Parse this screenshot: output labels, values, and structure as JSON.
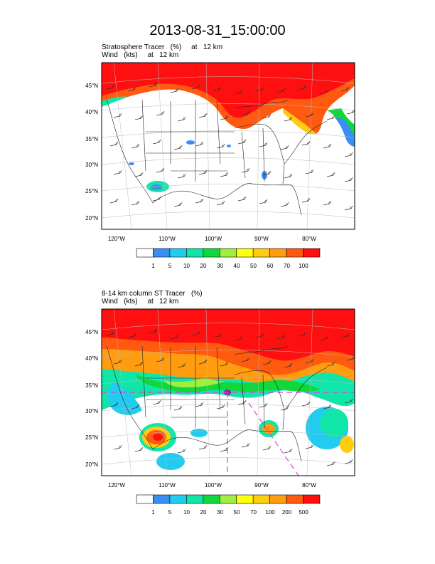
{
  "title": "2013-08-31_15:00:00",
  "panels": [
    {
      "title_line1": "Stratosphere Tracer   (%)     at   12 km",
      "title_line2": "Wind   (kts)     at   12 km",
      "lat_labels": [
        "45°N",
        "40°N",
        "35°N",
        "30°N",
        "25°N",
        "20°N"
      ],
      "lon_labels": [
        "120°W",
        "110°W",
        "100°W",
        "90°W",
        "80°W"
      ],
      "colorbar_labels": [
        "1",
        "5",
        "10",
        "20",
        "30",
        "40",
        "50",
        "60",
        "70",
        "100"
      ]
    },
    {
      "title_line1": "8-14 km column ST Tracer   (%)",
      "title_line2": "Wind   (kts)     at   12 km",
      "lat_labels": [
        "45°N",
        "40°N",
        "35°N",
        "30°N",
        "25°N",
        "20°N"
      ],
      "lon_labels": [
        "120°W",
        "110°W",
        "100°W",
        "90°W",
        "80°W"
      ],
      "colorbar_labels": [
        "1",
        "5",
        "10",
        "20",
        "30",
        "50",
        "70",
        "100",
        "200",
        "500"
      ]
    }
  ],
  "colorbar_colors": [
    "#ffffff",
    "#3a8ff5",
    "#22ccf0",
    "#10e6a8",
    "#10d83c",
    "#a0ee40",
    "#ffff10",
    "#ffcc10",
    "#ff9c10",
    "#ff5a10",
    "#ff1010"
  ]
}
